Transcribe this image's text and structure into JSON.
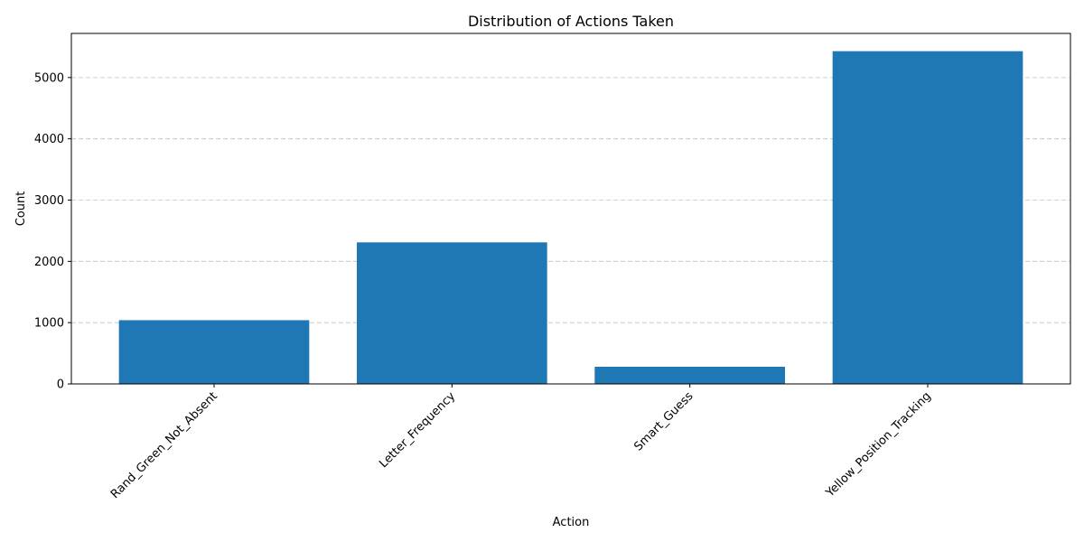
{
  "chart_data": {
    "type": "bar",
    "title": "Distribution of Actions Taken",
    "xlabel": "Action",
    "ylabel": "Count",
    "categories": [
      "Rand_Green_Not_Absent",
      "Letter_Frequency",
      "Smart_Guess",
      "Yellow_Position_Tracking"
    ],
    "values": [
      1040,
      2310,
      280,
      5430
    ],
    "ylim": [
      0,
      5720
    ],
    "yticks": [
      0,
      1000,
      2000,
      3000,
      4000,
      5000
    ],
    "grid": "y-dashed",
    "bar_color": "#1f77b4",
    "xtick_rotation": 45
  }
}
